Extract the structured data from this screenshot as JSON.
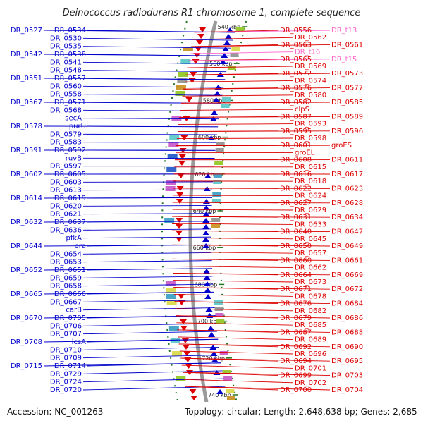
{
  "title": "Deinococcus radiodurans R1 chromosome 1, complete sequence",
  "accession": "Accession: NC_001263",
  "topology": "Topology: circular; Length: 2,648,638 bp; Genes: 2,685",
  "colors": {
    "left_strand": "#0000cc",
    "right_strand": "#dd0000",
    "rna": "#ff66cc",
    "backbone": "#9a9a9a",
    "tick": "#227722"
  },
  "scale_ticks": [
    "540 kbp",
    "560 kbp",
    "580 kbp",
    "600 kbp",
    "620 kbp",
    "640 kbp",
    "660 kbp",
    "680 kbp",
    "700 kbp",
    "720 kbp",
    "740 kbp"
  ],
  "left_labels": [
    "DR_0527",
    "DR_0534",
    "DR_0530",
    "DR_0535",
    "DR_0542",
    "DR_0538",
    "DR_0541",
    "DR_0548",
    "DR_0551",
    "DR_0557",
    "DR_0560",
    "DR_0558",
    "DR_0567",
    "DR_0571",
    "DR_0568",
    "secA",
    "DR_0578",
    "purU",
    "DR_0579",
    "DR_0583",
    "DR_0591",
    "DR_0592",
    "ruvB",
    "DR_0597",
    "DR_0602",
    "DR_0605",
    "DR_0603",
    "DR_0613",
    "DR_0614",
    "DR_0619",
    "DR_0620",
    "DR_0621",
    "DR_0632",
    "DR_0637",
    "DR_0636",
    "pfkA",
    "DR_0644",
    "era",
    "DR_0654",
    "DR_0653",
    "DR_0652",
    "DR_0651",
    "DR_0659",
    "DR_0658",
    "DR_0665",
    "DR_0666",
    "DR_0667",
    "carB",
    "DR_0670",
    "DR_0705",
    "DR_0706",
    "DR_0707",
    "DR_0708",
    "icsA",
    "DR_0710",
    "DR_0709",
    "DR_0715",
    "DR_0714",
    "DR_0729",
    "DR_0724",
    "DR_0720"
  ],
  "right_labels": [
    "DR_0556",
    "DR_t13",
    "DR_0562",
    "DR_0563",
    "DR_0561",
    "DR_t16",
    "DR_0565",
    "DR_t15",
    "DR_0569",
    "DR_0572",
    "DR_0573",
    "DR_0574",
    "DR_0576",
    "DR_0577",
    "DR_0580",
    "DR_0582",
    "DR_0585",
    "clpS",
    "DR_0587",
    "DR_0589",
    "DR_0593",
    "DR_0595",
    "DR_0596",
    "DR_0598",
    "DR_0601",
    "groES",
    "groEL",
    "DR_0608",
    "DR_0611",
    "DR_0615",
    "DR_0616",
    "DR_0617",
    "DR_0618",
    "DR_0622",
    "DR_0623",
    "DR_0624",
    "DR_0627",
    "DR_0628",
    "DR_0629",
    "DR_0631",
    "DR_0634",
    "DR_0633",
    "DR_0640",
    "DR_0647",
    "DR_0645",
    "DR_0650",
    "DR_0649",
    "DR_0657",
    "DR_0660",
    "DR_0661",
    "DR_0662",
    "DR_0664",
    "DR_0669",
    "DR_0673",
    "DR_0671",
    "DR_0672",
    "DR_0678",
    "DR_0676",
    "DR_0684",
    "DR_0682",
    "DR_0679",
    "DR_0686",
    "DR_0685",
    "DR_0687",
    "DR_0688",
    "DR_0689",
    "DR_0692",
    "DR_0690",
    "DR_0696",
    "DR_0694",
    "DR_0695",
    "DR_0701",
    "DR_0699",
    "DR_0703",
    "DR_0702",
    "DR_0700",
    "DR_0704"
  ]
}
